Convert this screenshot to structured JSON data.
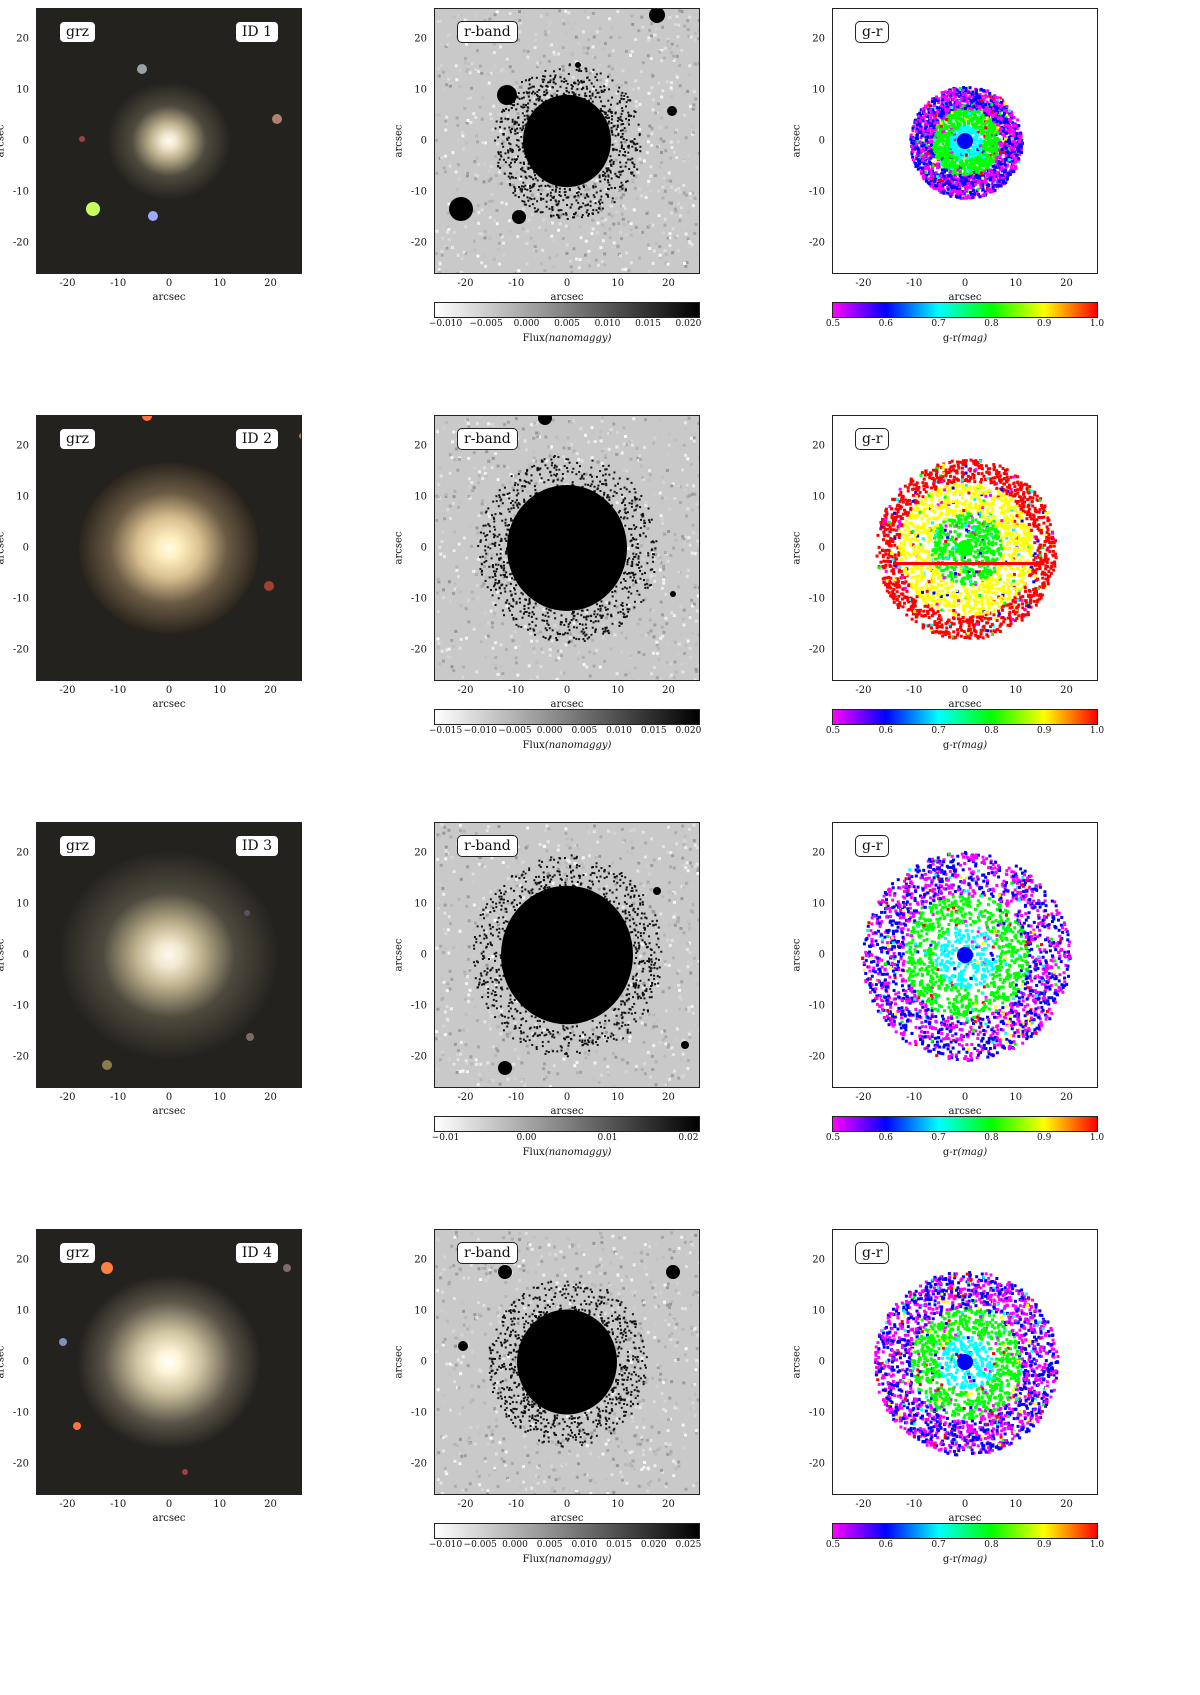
{
  "panel_labels": {
    "grz": "grz",
    "rband": "r-band",
    "gr": "g-r"
  },
  "axis_label": "arcsec",
  "ticks": [
    "-20",
    "-10",
    "0",
    "10",
    "20"
  ],
  "colorbar_gr": {
    "label_text": "g-r",
    "label_unit": "(mag)",
    "ticks": [
      "0.5",
      "0.6",
      "0.7",
      "0.8",
      "0.9",
      "1.0"
    ]
  },
  "colorbar_flux": {
    "label_text": "Flux",
    "label_unit": "(nanomaggy)"
  },
  "rows": [
    {
      "id": "ID 1",
      "flux_ticks": [
        "−0.010",
        "−0.005",
        "0.000",
        "0.005",
        "0.010",
        "0.015",
        "0.020"
      ]
    },
    {
      "id": "ID 2",
      "flux_ticks": [
        "−0.015",
        "−0.010",
        "−0.005",
        "0.000",
        "0.005",
        "0.010",
        "0.015",
        "0.020"
      ]
    },
    {
      "id": "ID 3",
      "flux_ticks": [
        "−0.01",
        "0.00",
        "0.01",
        "0.02"
      ]
    },
    {
      "id": "ID 4",
      "flux_ticks": [
        "−0.010",
        "−0.005",
        "0.000",
        "0.005",
        "0.010",
        "0.015",
        "0.020",
        "0.025"
      ]
    }
  ],
  "colors": {
    "grz_bg": "#24221f",
    "rband_bg": "#c9c9c9",
    "gr_scale": [
      "#ff00ff",
      "#0000ff",
      "#00ffff",
      "#00ff00",
      "#ffff00",
      "#ff0000"
    ]
  }
}
